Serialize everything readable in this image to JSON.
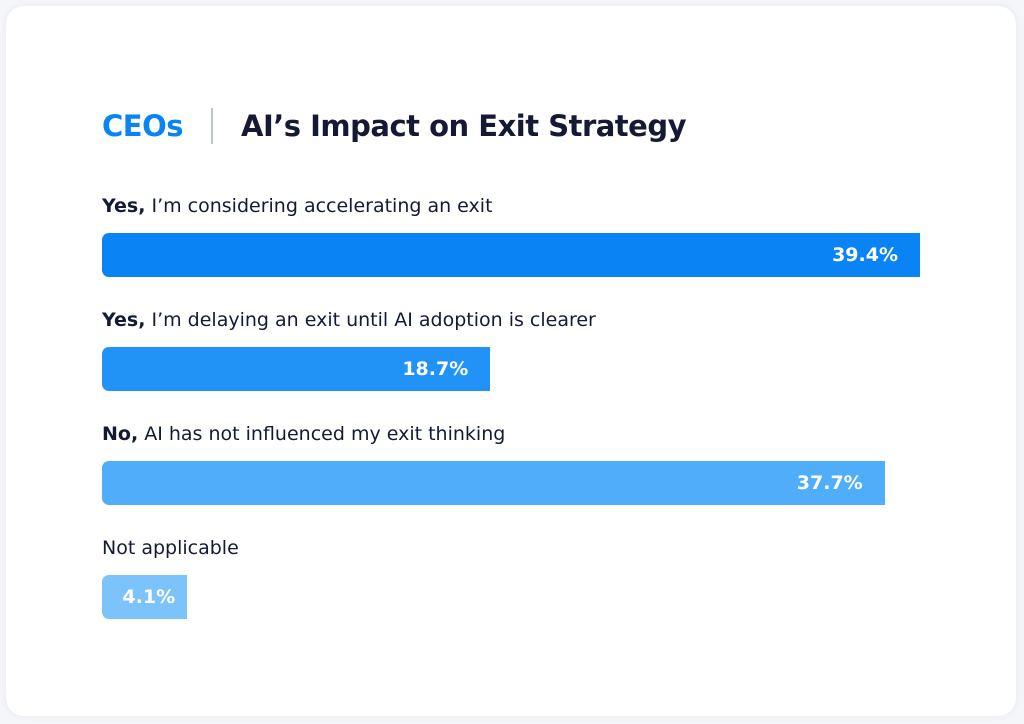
{
  "chart_data": {
    "type": "bar",
    "orientation": "horizontal",
    "title_prefix": "CEOs",
    "title": "AI’s Impact on Exit Strategy",
    "categories": [
      {
        "bold": "Yes,",
        "rest": " I’m considering accelerating an exit"
      },
      {
        "bold": "Yes,",
        "rest": " I’m delaying an exit until AI adoption is clearer"
      },
      {
        "bold": "No,",
        "rest": " AI has not influenced my exit thinking"
      },
      {
        "bold": "",
        "rest": "Not applicable"
      }
    ],
    "values": [
      39.4,
      18.7,
      37.7,
      4.1
    ],
    "value_labels": [
      "39.4%",
      "18.7%",
      "37.7%",
      "4.1%"
    ],
    "colors": [
      "#0a84f5",
      "#2293f6",
      "#4fadfa",
      "#7cc2fb"
    ],
    "unit": "%",
    "grid": false
  }
}
